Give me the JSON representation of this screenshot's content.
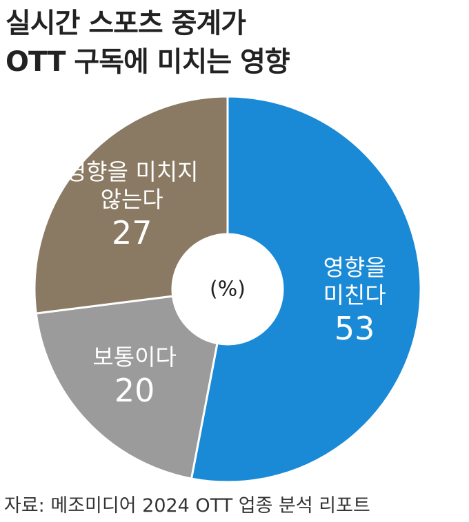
{
  "chart_data": {
    "type": "donut",
    "title": "실시간 스포츠 중계가\nOTT 구독에 미치는 영향",
    "center_label": "(%)",
    "categories": [
      "영향을\n미친다",
      "보통이다",
      "영향을 미치지\n않는다"
    ],
    "values": [
      53,
      20,
      27
    ],
    "colors": [
      "#1a8ad6",
      "#9b9b9b",
      "#8b7a63"
    ],
    "source": "자료: 메조미디어 2024 OTT 업종 분석 리포트"
  }
}
